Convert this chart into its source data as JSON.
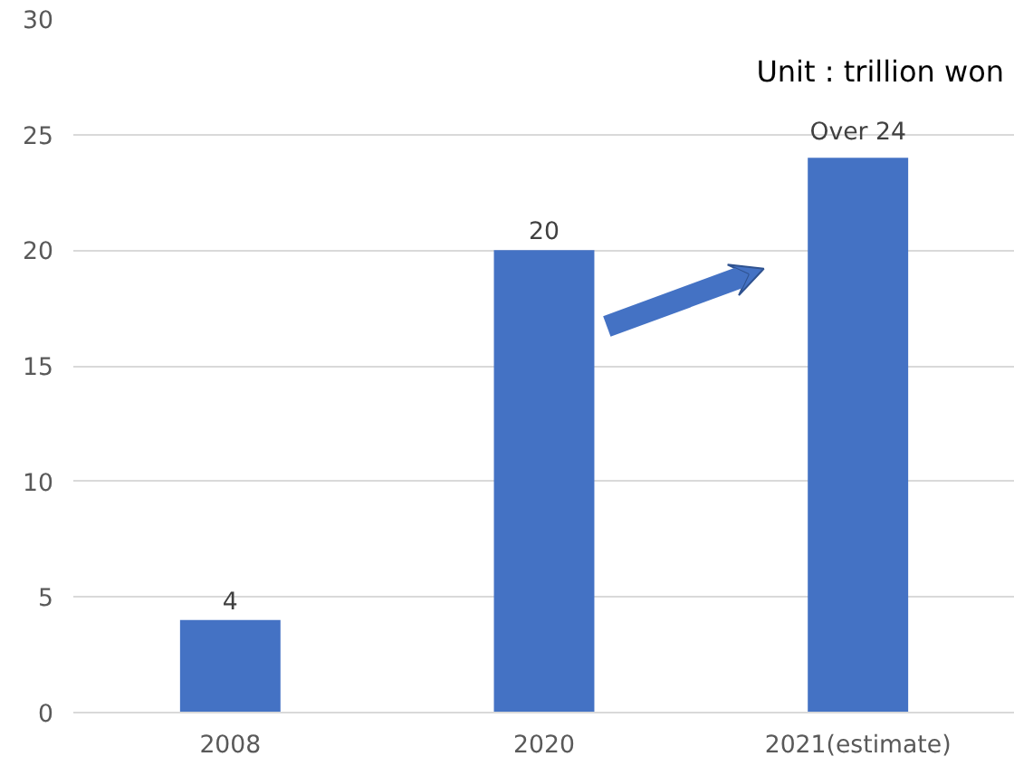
{
  "chart_data": {
    "type": "bar",
    "categories": [
      "2008",
      "2020",
      "2021(estimate)"
    ],
    "values": [
      4,
      20,
      24
    ],
    "value_labels": [
      "4",
      "20",
      "Over 24"
    ],
    "color": "#4472c4",
    "ylim": [
      0,
      30
    ],
    "yticks": [
      0,
      5,
      10,
      15,
      20,
      25,
      30
    ],
    "grid": "y",
    "annotations": [
      "Unit : trillion won"
    ]
  }
}
